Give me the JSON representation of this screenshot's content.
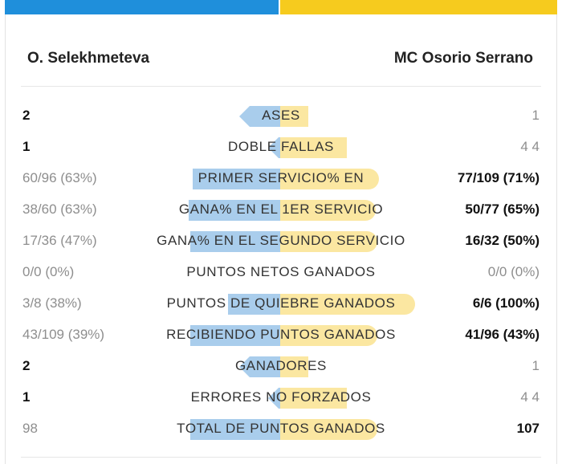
{
  "players": {
    "p1": {
      "name": "O. Selekhmeteva",
      "color": "#1f8fdb"
    },
    "p2": {
      "name": "MC Osorio Serrano",
      "color": "#f6cb1e"
    }
  },
  "stats": [
    {
      "label": "ASES",
      "p1": "2",
      "p2": "1",
      "p1_share": 0.667,
      "p2_share": 0.333,
      "winner": "p1"
    },
    {
      "label": "DOBLE FALLAS",
      "p1": "1",
      "p2": "4 4",
      "p1_share": 0.2,
      "p2_share": 0.8,
      "winner": "p1"
    },
    {
      "label": "PRIMER SERVICIO% EN",
      "p1": "60/96 (63%)",
      "p2": "77/109 (71%)",
      "p1_share": 0.47,
      "p2_share": 0.53,
      "winner": "p2"
    },
    {
      "label": "GANA% EN EL 1ER SERVICIO",
      "p1": "38/60 (63%)",
      "p2": "50/77 (65%)",
      "p1_share": 0.49,
      "p2_share": 0.51,
      "winner": "p2"
    },
    {
      "label": "GANA% EN EL SEGUNDO SERVICIO",
      "p1": "17/36 (47%)",
      "p2": "16/32 (50%)",
      "p1_share": 0.48,
      "p2_share": 0.52,
      "winner": "p2"
    },
    {
      "label": "PUNTOS NETOS GANADOS",
      "p1": "0/0 (0%)",
      "p2": "0/0 (0%)",
      "p1_share": 0,
      "p2_share": 0,
      "winner": "none"
    },
    {
      "label": "PUNTOS DE QUIEBRE GANADOS",
      "p1": "3/8 (38%)",
      "p2": "6/6 (100%)",
      "p1_share": 0.28,
      "p2_share": 0.72,
      "winner": "p2"
    },
    {
      "label": "RECIBIENDO PUNTOS GANADOS",
      "p1": "43/109 (39%)",
      "p2": "41/96 (43%)",
      "p1_share": 0.48,
      "p2_share": 0.52,
      "winner": "p2"
    },
    {
      "label": "GANADORES",
      "p1": "2",
      "p2": "1",
      "p1_share": 0.667,
      "p2_share": 0.333,
      "winner": "p1"
    },
    {
      "label": "ERRORES NO FORZADOS",
      "p1": "1",
      "p2": "4 4",
      "p1_share": 0.2,
      "p2_share": 0.8,
      "winner": "p1"
    },
    {
      "label": "TOTAL DE PUNTOS GANADOS",
      "p1": "98",
      "p2": "107",
      "p1_share": 0.48,
      "p2_share": 0.52,
      "winner": "p2"
    }
  ]
}
